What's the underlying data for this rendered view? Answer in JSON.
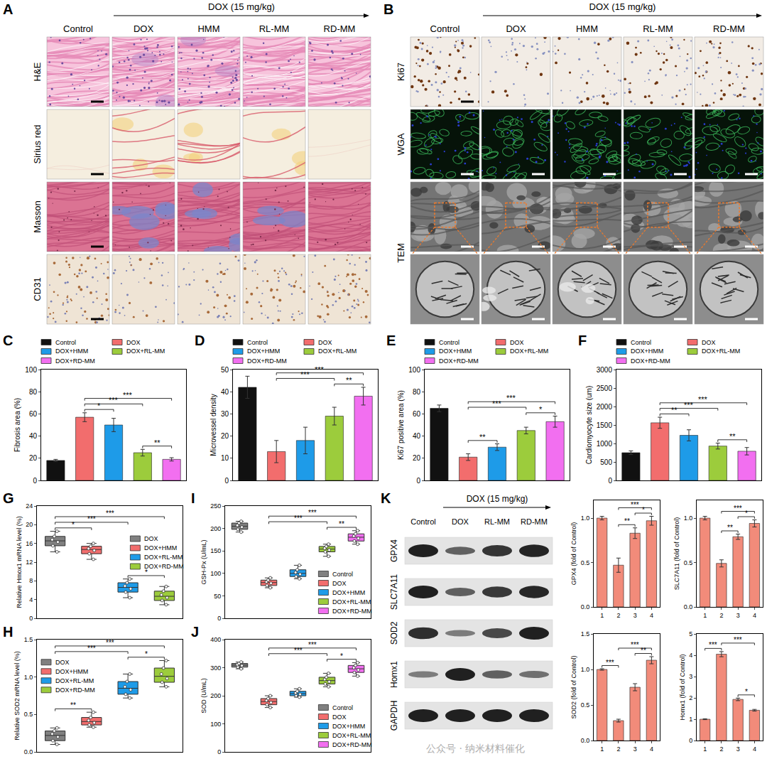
{
  "images": {
    "A": {
      "label": "A",
      "header": "DOX (15 mg/kg)",
      "columns": [
        "Control",
        "DOX",
        "HMM",
        "RL-MM",
        "RD-MM"
      ],
      "rows": [
        "H&E",
        "Sirius red",
        "Masson",
        "CD31"
      ]
    },
    "B": {
      "label": "B",
      "header": "DOX (15 mg/kg)",
      "columns": [
        "Control",
        "DOX",
        "HMM",
        "RL-MM",
        "RD-MM"
      ],
      "rows": [
        "Ki67",
        "WGA",
        "TEM"
      ]
    }
  },
  "blot": {
    "label": "K",
    "header": "DOX (15 mg/kg)",
    "columns": [
      "Control",
      "DOX",
      "RL-MM",
      "RD-MM"
    ],
    "rows": [
      "GPX4",
      "SLC7A11",
      "SOD2",
      "Homx1",
      "GAPDH"
    ]
  },
  "watermark": "公众号 · 纳米材料催化",
  "chart_data": [
    {
      "label": "C",
      "type": "bar",
      "y_label": "Fibrosis area (%)",
      "categories": [
        "Control",
        "DOX",
        "DOX+HMM",
        "DOX+RL-MM",
        "DOX+RD-MM"
      ],
      "values": [
        18,
        57,
        50,
        25,
        19
      ],
      "errors": [
        1,
        4,
        6,
        3,
        1.5
      ],
      "colors": [
        "#111111",
        "#f26d6d",
        "#1e9be8",
        "#9ccc3c",
        "#f26ff0"
      ],
      "ylim": [
        0,
        100
      ],
      "yticks": [
        0,
        20,
        40,
        60,
        80,
        100
      ],
      "legend": "top",
      "tick_labels": "y",
      "significance": [
        {
          "from": 1,
          "to": 2,
          "label": "*"
        },
        {
          "from": 3,
          "to": 4,
          "label": "**"
        },
        {
          "from": 1,
          "to": 3,
          "label": "***"
        },
        {
          "from": 1,
          "to": 4,
          "label": "***"
        }
      ]
    },
    {
      "label": "D",
      "type": "bar",
      "y_label": "Microvessel density",
      "categories": [
        "Control",
        "DOX",
        "DOX+HMM",
        "DOX+RL-MM",
        "DOX+RD-MM"
      ],
      "values": [
        42,
        13,
        18,
        29,
        38
      ],
      "errors": [
        5,
        5,
        6,
        4,
        4
      ],
      "colors": [
        "#111111",
        "#f26d6d",
        "#1e9be8",
        "#9ccc3c",
        "#f26ff0"
      ],
      "ylim": [
        0,
        50
      ],
      "yticks": [
        0,
        10,
        20,
        30,
        40,
        50
      ],
      "legend": "top",
      "tick_labels": "y",
      "significance": [
        {
          "from": 3,
          "to": 4,
          "label": "**"
        },
        {
          "from": 1,
          "to": 3,
          "label": "***"
        },
        {
          "from": 1,
          "to": 4,
          "label": "***"
        }
      ]
    },
    {
      "label": "E",
      "type": "bar",
      "y_label": "Ki67 positive area (%)",
      "categories": [
        "Control",
        "DOX",
        "DOX+HMM",
        "DOX+RL-MM",
        "DOX+RD-MM"
      ],
      "values": [
        65,
        21,
        30,
        45,
        53
      ],
      "errors": [
        3,
        3,
        3,
        3,
        5
      ],
      "colors": [
        "#111111",
        "#f26d6d",
        "#1e9be8",
        "#9ccc3c",
        "#f26ff0"
      ],
      "ylim": [
        0,
        100
      ],
      "yticks": [
        0,
        20,
        40,
        60,
        80,
        100
      ],
      "legend": "top",
      "tick_labels": "y",
      "significance": [
        {
          "from": 1,
          "to": 2,
          "label": "**"
        },
        {
          "from": 3,
          "to": 4,
          "label": "*"
        },
        {
          "from": 1,
          "to": 3,
          "label": "***"
        },
        {
          "from": 1,
          "to": 4,
          "label": "***"
        }
      ]
    },
    {
      "label": "F",
      "type": "bar",
      "y_label": "Cardiomyocyte size (um)",
      "categories": [
        "Control",
        "DOX",
        "DOX+HMM",
        "DOX+RL-MM",
        "DOX+RD-MM"
      ],
      "values": [
        750,
        1560,
        1220,
        930,
        790
      ],
      "errors": [
        50,
        150,
        150,
        80,
        100
      ],
      "colors": [
        "#111111",
        "#f26d6d",
        "#1e9be8",
        "#9ccc3c",
        "#f26ff0"
      ],
      "ylim": [
        0,
        3000
      ],
      "yticks": [
        0,
        500,
        1000,
        1500,
        2000,
        2500,
        3000
      ],
      "legend": "top",
      "tick_labels": "y",
      "significance": [
        {
          "from": 1,
          "to": 2,
          "label": "**"
        },
        {
          "from": 3,
          "to": 4,
          "label": "**"
        },
        {
          "from": 1,
          "to": 3,
          "label": "***"
        },
        {
          "from": 1,
          "to": 4,
          "label": "***"
        }
      ]
    },
    {
      "label": "G",
      "type": "box",
      "y_label": "Relative Hmox1 mRNA level (%)",
      "series": [
        {
          "name": "DOX",
          "color": "#808080",
          "values": [
            14.2,
            15.5,
            16.3,
            16.8,
            17.5,
            18.6
          ]
        },
        {
          "name": "DOX+HMM",
          "color": "#f26d6d",
          "values": [
            12.6,
            13.8,
            14.5,
            14.9,
            15.4,
            16.0
          ]
        },
        {
          "name": "DOX+RL-MM",
          "color": "#1e9be8",
          "values": [
            4.4,
            5.6,
            6.3,
            6.9,
            7.6,
            8.4
          ]
        },
        {
          "name": "DOX+RD-MM",
          "color": "#9ccc3c",
          "values": [
            2.9,
            3.8,
            4.4,
            5.0,
            5.8,
            6.8
          ]
        }
      ],
      "ylim": [
        0,
        24
      ],
      "yticks": [
        0,
        4,
        8,
        12,
        16,
        20,
        24
      ],
      "legend": "right",
      "tick_labels": "y",
      "significance": [
        {
          "from": 0,
          "to": 1,
          "label": "*"
        },
        {
          "from": 2,
          "to": 3,
          "label": "*"
        },
        {
          "from": 0,
          "to": 2,
          "label": "***"
        },
        {
          "from": 0,
          "to": 3,
          "label": "***"
        }
      ]
    },
    {
      "label": "H",
      "type": "box",
      "y_label": "Relative SOD2 mRNA level (%)",
      "series": [
        {
          "name": "DOX",
          "color": "#808080",
          "values": [
            0.1,
            0.15,
            0.2,
            0.24,
            0.28,
            0.32
          ]
        },
        {
          "name": "DOX+HMM",
          "color": "#f26d6d",
          "values": [
            0.33,
            0.36,
            0.39,
            0.42,
            0.46,
            0.53
          ]
        },
        {
          "name": "DOX+RL-MM",
          "color": "#1e9be8",
          "values": [
            0.72,
            0.77,
            0.83,
            0.87,
            0.94,
            1.04
          ]
        },
        {
          "name": "DOX+RD-MM",
          "color": "#9ccc3c",
          "values": [
            0.87,
            0.93,
            0.98,
            1.04,
            1.12,
            1.22
          ]
        }
      ],
      "ylim": [
        0,
        1.5
      ],
      "yticks": [
        {
          "value": 0,
          "label": "0.0"
        },
        {
          "value": 0.5,
          "label": "0.5"
        },
        {
          "value": 1,
          "label": "1.0"
        },
        {
          "value": 1.5,
          "label": "1.5"
        }
      ],
      "legend": "upper left",
      "tick_labels": "y",
      "significance": [
        {
          "from": 0,
          "to": 1,
          "label": "**"
        },
        {
          "from": 2,
          "to": 3,
          "label": "*"
        },
        {
          "from": 0,
          "to": 2,
          "label": "***"
        },
        {
          "from": 0,
          "to": 3,
          "label": "***"
        }
      ]
    },
    {
      "label": "I",
      "type": "box",
      "y_label": "GSH-Px (U/mL)",
      "series": [
        {
          "name": "Control",
          "color": "#808080",
          "values": [
            192,
            198,
            203,
            207,
            212,
            216
          ]
        },
        {
          "name": "DOX",
          "color": "#f26d6d",
          "values": [
            68,
            73,
            78,
            81,
            85,
            90
          ]
        },
        {
          "name": "DOX+HMM",
          "color": "#1e9be8",
          "values": [
            88,
            93,
            98,
            102,
            108,
            118
          ]
        },
        {
          "name": "DOX+RL-MM",
          "color": "#9ccc3c",
          "values": [
            138,
            148,
            152,
            156,
            160,
            165
          ]
        },
        {
          "name": "DOX+RD-MM",
          "color": "#f26ff0",
          "values": [
            165,
            172,
            178,
            183,
            188,
            195
          ]
        }
      ],
      "ylim": [
        0,
        250
      ],
      "yticks": [
        0,
        50,
        100,
        150,
        200,
        250
      ],
      "legend": "lower right",
      "tick_labels": "y",
      "significance": [
        {
          "from": 3,
          "to": 4,
          "label": "**"
        },
        {
          "from": 1,
          "to": 3,
          "label": "***"
        },
        {
          "from": 1,
          "to": 4,
          "label": "***"
        }
      ]
    },
    {
      "label": "J",
      "type": "box",
      "y_label": "SOD (U/mL)",
      "series": [
        {
          "name": "Control",
          "color": "#808080",
          "values": [
            296,
            302,
            307,
            311,
            315,
            320
          ]
        },
        {
          "name": "DOX",
          "color": "#f26d6d",
          "values": [
            158,
            168,
            176,
            183,
            190,
            200
          ]
        },
        {
          "name": "DOX+HMM",
          "color": "#1e9be8",
          "values": [
            195,
            200,
            205,
            210,
            216,
            225
          ]
        },
        {
          "name": "DOX+RL-MM",
          "color": "#9ccc3c",
          "values": [
            232,
            242,
            250,
            258,
            266,
            280
          ]
        },
        {
          "name": "DOX+RD-MM",
          "color": "#f26ff0",
          "values": [
            270,
            283,
            292,
            300,
            308,
            318
          ]
        }
      ],
      "ylim": [
        0,
        400
      ],
      "yticks": [
        0,
        100,
        200,
        300,
        400
      ],
      "legend": "lower right",
      "tick_labels": "y",
      "significance": [
        {
          "from": 3,
          "to": 4,
          "label": "*"
        },
        {
          "from": 1,
          "to": 3,
          "label": "***"
        },
        {
          "from": 1,
          "to": 4,
          "label": "***"
        }
      ]
    },
    {
      "type": "bar",
      "y_label": "GPX4 (fold of Control)",
      "categories": [
        "1",
        "2",
        "3",
        "4"
      ],
      "values": [
        1.0,
        0.47,
        0.83,
        0.97
      ],
      "errors": [
        0.02,
        0.08,
        0.06,
        0.05
      ],
      "color": "#f28b7a",
      "ylim": [
        0,
        1.2
      ],
      "yticks": [
        {
          "value": 0,
          "label": "0.0"
        },
        {
          "value": 0.5,
          "label": "0.5"
        },
        {
          "value": 1,
          "label": "1.0"
        }
      ],
      "significance": [
        {
          "from": 1,
          "to": 2,
          "label": "**"
        },
        {
          "from": 2,
          "to": 3,
          "label": "*"
        },
        {
          "from": 1,
          "to": 3,
          "label": "***"
        }
      ]
    },
    {
      "type": "bar",
      "y_label": "SLC7A11 (fold of Control)",
      "categories": [
        "1",
        "2",
        "3",
        "4"
      ],
      "values": [
        1.0,
        0.49,
        0.79,
        0.94
      ],
      "errors": [
        0.02,
        0.04,
        0.03,
        0.04
      ],
      "color": "#f28b7a",
      "ylim": [
        0,
        1.2
      ],
      "yticks": [
        {
          "value": 0,
          "label": "0.0"
        },
        {
          "value": 0.5,
          "label": "0.5"
        },
        {
          "value": 1,
          "label": "1.0"
        }
      ],
      "significance": [
        {
          "from": 1,
          "to": 2,
          "label": "**"
        },
        {
          "from": 2,
          "to": 3,
          "label": "*"
        },
        {
          "from": 1,
          "to": 3,
          "label": "***"
        }
      ]
    },
    {
      "type": "bar",
      "y_label": "SOD2 (fold of Control)",
      "categories": [
        "1",
        "2",
        "3",
        "4"
      ],
      "values": [
        1.0,
        0.28,
        0.75,
        1.13
      ],
      "errors": [
        0.01,
        0.02,
        0.05,
        0.05
      ],
      "color": "#f28b7a",
      "ylim": [
        0,
        1.5
      ],
      "yticks": [
        {
          "value": 0,
          "label": "0.0"
        },
        {
          "value": 0.5,
          "label": "0.5"
        },
        {
          "value": 1,
          "label": "1.0"
        },
        {
          "value": 1.5,
          "label": "1.5"
        }
      ],
      "significance": [
        {
          "from": 0,
          "to": 1,
          "label": "***"
        },
        {
          "from": 2,
          "to": 3,
          "label": "**"
        },
        {
          "from": 1,
          "to": 3,
          "label": "***"
        }
      ]
    },
    {
      "type": "bar",
      "y_label": "Homx1 (fold of Control)",
      "categories": [
        "1",
        "2",
        "3",
        "4"
      ],
      "values": [
        1.0,
        4.05,
        1.93,
        1.42
      ],
      "errors": [
        0.02,
        0.12,
        0.06,
        0.04
      ],
      "color": "#f28b7a",
      "ylim": [
        0,
        5
      ],
      "yticks": [
        0,
        1,
        2,
        3,
        4,
        5
      ],
      "significance": [
        {
          "from": 0,
          "to": 1,
          "label": "***"
        },
        {
          "from": 2,
          "to": 3,
          "label": "*"
        },
        {
          "from": 1,
          "to": 3,
          "label": "***"
        }
      ]
    }
  ]
}
